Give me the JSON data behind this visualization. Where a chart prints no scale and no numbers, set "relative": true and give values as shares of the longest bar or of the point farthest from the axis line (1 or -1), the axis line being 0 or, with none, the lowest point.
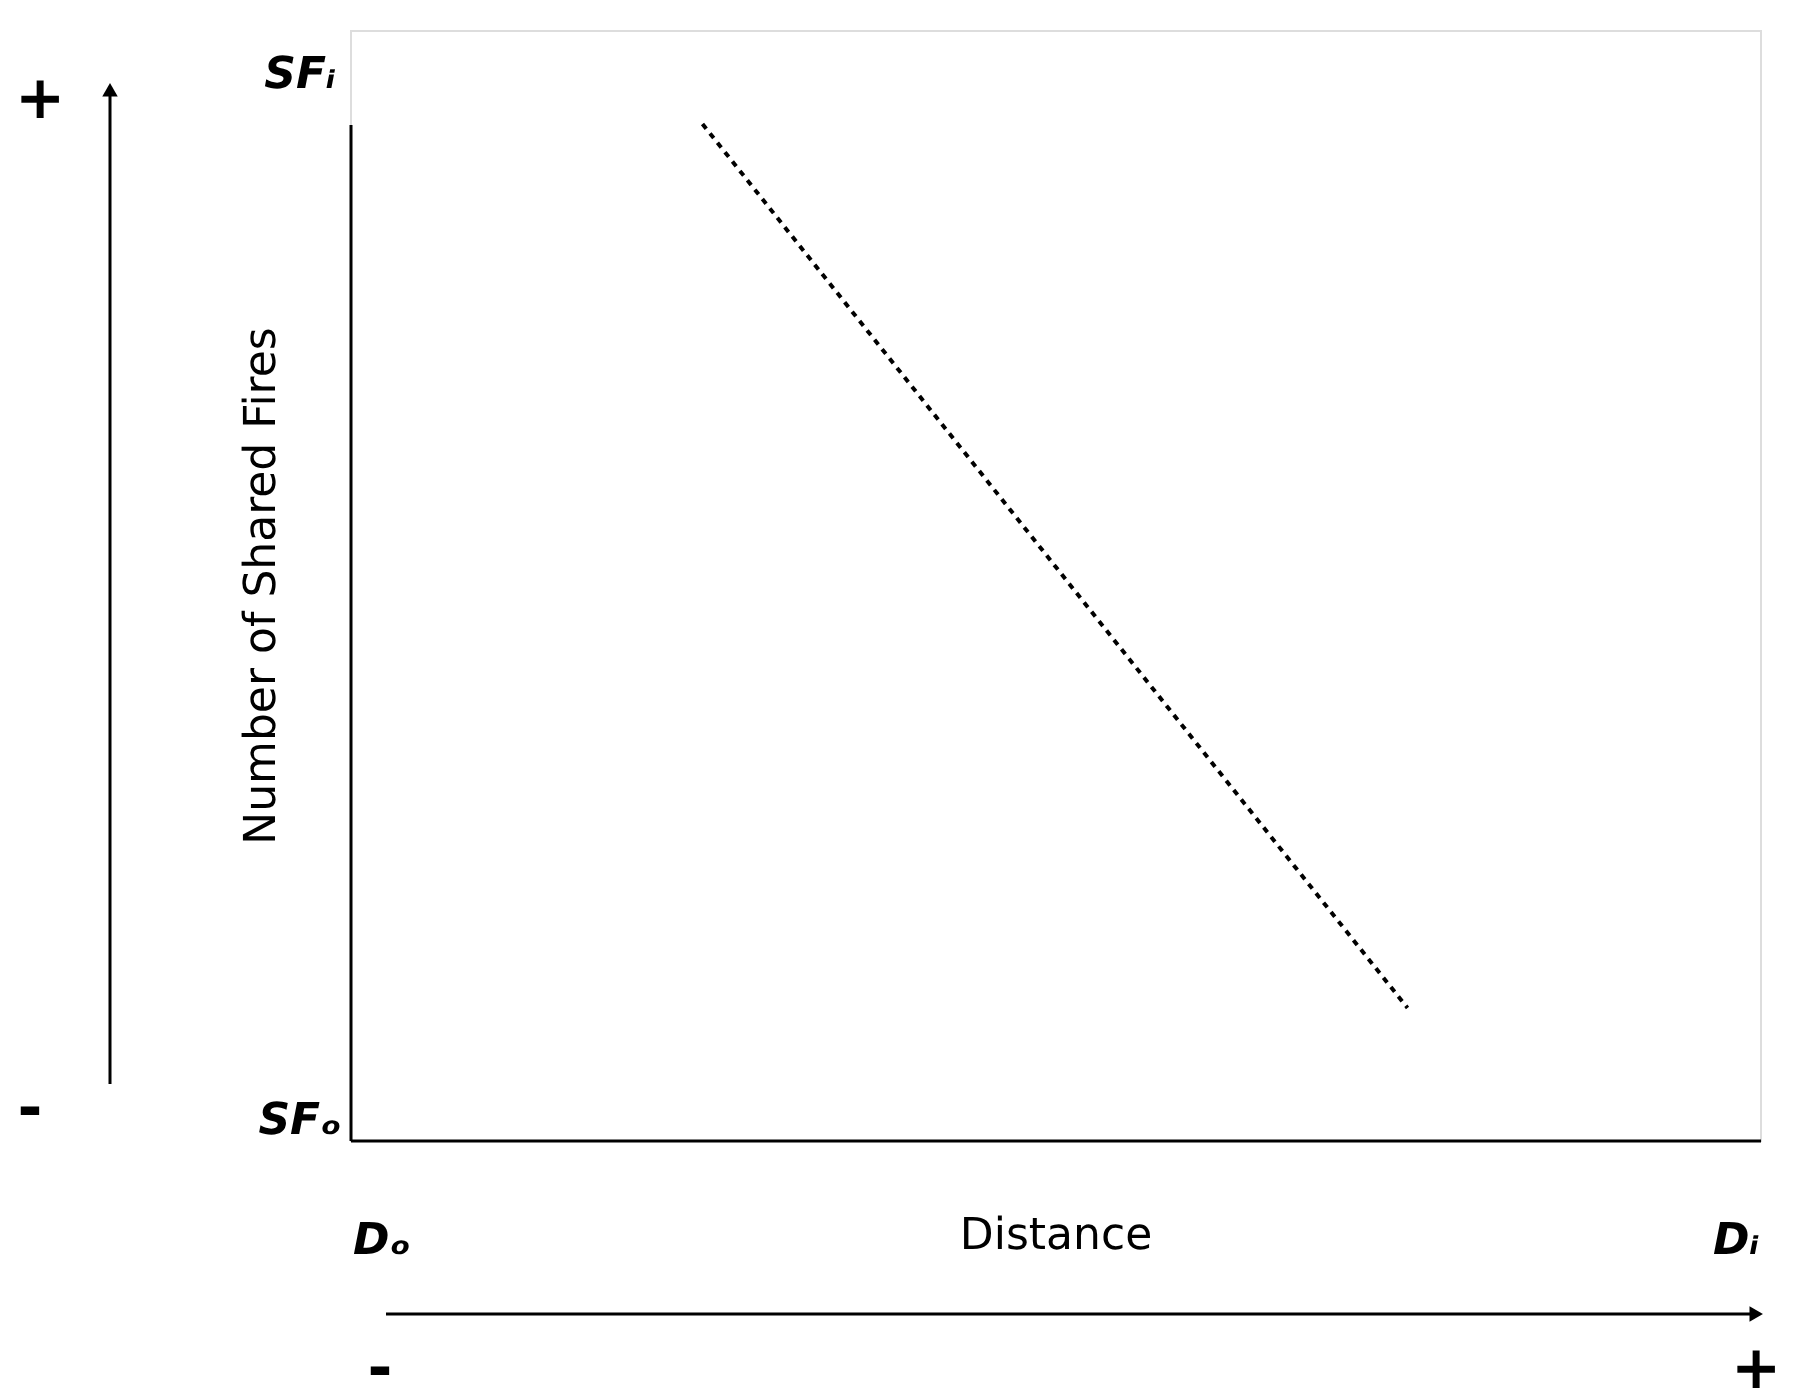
{
  "chart_data": {
    "type": "line",
    "relative": true,
    "xlabel": "Distance",
    "ylabel": "Number of Shared Fires",
    "categories": [
      null,
      null
    ],
    "series": [
      {
        "color": "#000000",
        "values": [
          1,
          0.13
        ]
      }
    ],
    "marker": "none",
    "line_style": "dotted",
    "annotations": [
      "SFᵢ",
      "SFₒ",
      "Dₒ",
      "Dᵢ",
      "+",
      "-",
      "-",
      "+"
    ]
  }
}
